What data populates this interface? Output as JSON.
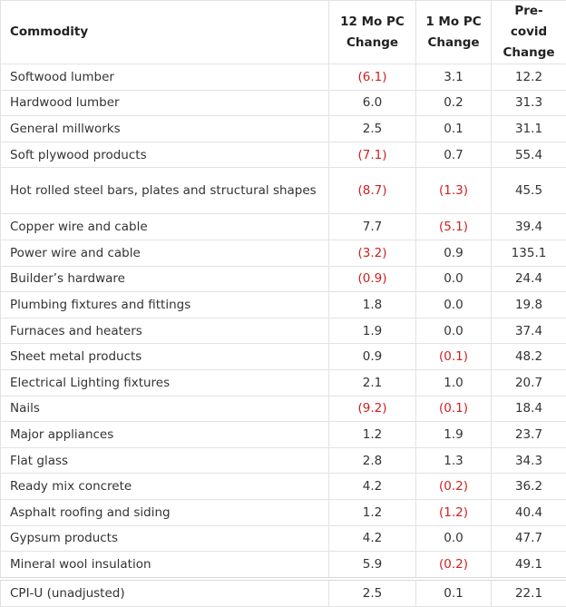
{
  "table": {
    "header": [
      "Commodity",
      "12 Mo PC Change",
      "1 Mo PC Change",
      "Pre-covid Change"
    ],
    "rows": [
      [
        "Softwood lumber",
        "(6.1)",
        "3.1",
        "12.2"
      ],
      [
        "Hardwood lumber",
        "6.0",
        "0.2",
        "31.3"
      ],
      [
        "General millworks",
        "2.5",
        "0.1",
        "31.1"
      ],
      [
        "Soft plywood products",
        "(7.1)",
        "0.7",
        "55.4"
      ],
      [
        "Hot rolled steel bars, plates and structural shapes",
        "(8.7)",
        "(1.3)",
        "45.5"
      ],
      [
        "Copper wire and cable",
        "7.7",
        "(5.1)",
        "39.4"
      ],
      [
        "Power wire and cable",
        "(3.2)",
        "0.9",
        "135.1"
      ],
      [
        "Builder’s hardware",
        "(0.9)",
        "0.0",
        "24.4"
      ],
      [
        "Plumbing fixtures and fittings",
        "1.8",
        "0.0",
        "19.8"
      ],
      [
        "Furnaces and heaters",
        "1.9",
        "0.0",
        "37.4"
      ],
      [
        "Sheet metal products",
        "0.9",
        "(0.1)",
        "48.2"
      ],
      [
        "Electrical Lighting fixtures",
        "2.1",
        "1.0",
        "20.7"
      ],
      [
        "Nails",
        "(9.2)",
        "(0.1)",
        "18.4"
      ],
      [
        "Major appliances",
        "1.2",
        "1.9",
        "23.7"
      ],
      [
        "Flat glass",
        "2.8",
        "1.3",
        "34.3"
      ],
      [
        "Ready mix concrete",
        "4.2",
        "(0.2)",
        "36.2"
      ],
      [
        "Asphalt roofing and siding",
        "1.2",
        "(1.2)",
        "40.4"
      ],
      [
        "Gypsum products",
        "4.2",
        "0.0",
        "47.7"
      ],
      [
        "Mineral wool insulation",
        "5.9",
        "(0.2)",
        "49.1"
      ]
    ],
    "footer": [
      "CPI-U (unadjusted)",
      "2.5",
      "0.1",
      "22.1"
    ],
    "negative_color": "#d02020"
  }
}
